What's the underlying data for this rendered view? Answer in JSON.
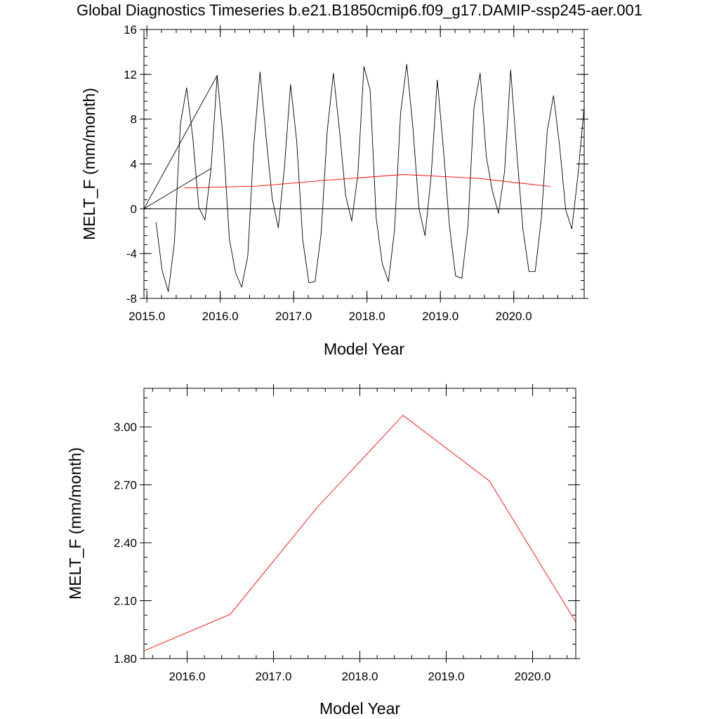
{
  "title": "Global Diagnostics Timeseries b.e21.B1850cmip6.f09_g17.DAMIP-ssp245-aer.001",
  "colors": {
    "monthly": "#000000",
    "annual": "#ff0000",
    "axes": "#000000"
  },
  "chart_data": [
    {
      "type": "line",
      "xlabel": "Model Year",
      "ylabel": "MELT_F (mm/month)",
      "xlim": [
        2014.96,
        2020.96
      ],
      "ylim": [
        -8,
        16
      ],
      "xticks": [
        2015.0,
        2016.0,
        2017.0,
        2018.0,
        2019.0,
        2020.0
      ],
      "xtick_labels": [
        "2015.0",
        "2016.0",
        "2017.0",
        "2018.0",
        "2019.0",
        "2020.0"
      ],
      "yticks": [
        -8,
        -4,
        0,
        4,
        8,
        12,
        16
      ],
      "ytick_labels": [
        "-8",
        "-4",
        "0",
        "4",
        "8",
        "12",
        "16"
      ],
      "zero_line": 0,
      "series": [
        {
          "color": "#000000",
          "x": [
            2015.125,
            2015.208,
            2015.292,
            2015.375,
            2015.458,
            2015.542,
            2015.625,
            2015.708,
            2015.792,
            2015.875,
            2015.958,
            2016.042,
            2016.125,
            2016.208,
            2016.292,
            2016.375,
            2016.458,
            2016.542,
            2016.625,
            2016.708,
            2016.792,
            2016.875,
            2016.958,
            2017.042,
            2017.125,
            2017.208,
            2017.292,
            2017.375,
            2017.458,
            2017.542,
            2017.625,
            2017.708,
            2017.792,
            2017.875,
            2017.958,
            2018.042,
            2018.125,
            2018.208,
            2018.292,
            2018.375,
            2018.458,
            2018.542,
            2018.625,
            2018.708,
            2018.792,
            2018.875,
            2018.958,
            2019.042,
            2019.125,
            2019.208,
            2019.292,
            2019.375,
            2019.458,
            2019.542,
            2019.625,
            2019.708,
            2019.792,
            2019.875,
            2019.958,
            2020.042,
            2020.125,
            2020.208,
            2020.292,
            2020.375,
            2020.458,
            2020.542,
            2020.625,
            2020.708,
            2020.792,
            2020.875,
            2020.958
          ],
          "y": [
            -1.2,
            -5.5,
            -7.4,
            -3.0,
            7.6,
            10.8,
            6.4,
            0.1,
            -1.0,
            3.6,
            11.9,
            6.0,
            -2.7,
            -5.7,
            -7.0,
            -4.2,
            5.7,
            12.2,
            6.4,
            0.9,
            -1.7,
            3.7,
            11.1,
            6.0,
            -2.8,
            -6.6,
            -6.5,
            -2.2,
            6.9,
            12.1,
            7.0,
            1.2,
            -1.1,
            3.0,
            12.7,
            10.6,
            -0.8,
            -4.9,
            -6.5,
            -1.9,
            8.5,
            12.9,
            7.3,
            0.0,
            -2.4,
            3.0,
            11.5,
            5.3,
            -1.6,
            -6.0,
            -6.2,
            -1.6,
            9.0,
            12.1,
            4.7,
            1.6,
            -0.4,
            3.3,
            12.4,
            5.0,
            -1.8,
            -5.6,
            -5.6,
            -0.9,
            7.0,
            10.1,
            5.6,
            -0.1,
            -1.8,
            3.0,
            9.0
          ]
        },
        {
          "color": "#000000",
          "x": [
            2014.96,
            2015.958
          ],
          "y": [
            0.0,
            11.9
          ]
        },
        {
          "color": "#000000",
          "x": [
            2014.96,
            2015.875
          ],
          "y": [
            0.0,
            3.6
          ]
        },
        {
          "color": "#ff0000",
          "x": [
            2015.5,
            2016.5,
            2017.5,
            2018.5,
            2019.5,
            2020.5
          ],
          "y": [
            1.85,
            2.02,
            2.57,
            3.06,
            2.72,
            1.99
          ]
        }
      ]
    },
    {
      "type": "line",
      "xlabel": "Model Year",
      "ylabel": "MELT_F (mm/month)",
      "xlim": [
        2015.5,
        2020.5
      ],
      "ylim": [
        1.8,
        3.2
      ],
      "xticks": [
        2016.0,
        2017.0,
        2018.0,
        2019.0,
        2020.0
      ],
      "xtick_labels": [
        "2016.0",
        "2017.0",
        "2018.0",
        "2019.0",
        "2020.0"
      ],
      "yticks": [
        1.8,
        2.1,
        2.4,
        2.7,
        3.0
      ],
      "ytick_labels": [
        "1.80",
        "2.10",
        "2.40",
        "2.70",
        "3.00"
      ],
      "series": [
        {
          "color": "#ff0000",
          "x": [
            2015.5,
            2016.5,
            2017.5,
            2018.5,
            2019.5,
            2020.5
          ],
          "y": [
            1.84,
            2.03,
            2.58,
            3.06,
            2.72,
            1.99
          ]
        }
      ]
    }
  ]
}
